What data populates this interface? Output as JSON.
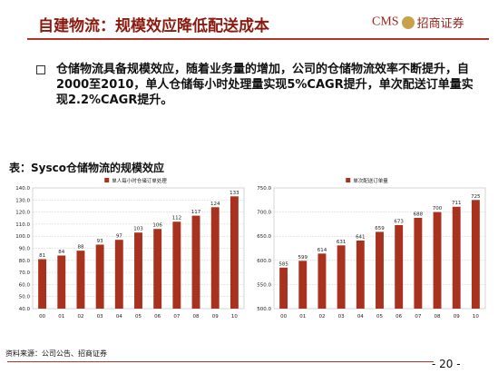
{
  "header": {
    "title": "自建物流：规模效应降低配送成本",
    "logo_cms": "CMS",
    "logo_name": "招商证券"
  },
  "bullet": {
    "text": "仓储物流具备规模效应，随着业务量的增加，公司的仓储物流效率不断提升，自2000至2010，单人仓储每小时处理量实现5%CAGR提升，单次配送订单量实现2.2%CAGR提升。"
  },
  "figure_title": "表：Sysco仓储物流的规模效应",
  "footer": {
    "source": "资料来源：公司公告、招商证券",
    "page": "- 20 -"
  },
  "colors": {
    "accent": "#8b1a10",
    "bar": "#a8321e",
    "rule": "#b3342a"
  },
  "chart_data": [
    {
      "type": "bar",
      "legend": "单人每小时仓储订单处理",
      "categories": [
        "00",
        "01",
        "02",
        "03",
        "04",
        "05",
        "06",
        "07",
        "08",
        "09",
        "10"
      ],
      "values": [
        81,
        84,
        88,
        93,
        97,
        103,
        106,
        112,
        117,
        124,
        133
      ],
      "ylim": [
        40,
        140
      ],
      "yticks": [
        40,
        50,
        60,
        70,
        80,
        90,
        100,
        110,
        120,
        130,
        140
      ],
      "ytick_labels": [
        "40.0",
        "50.0",
        "60.0",
        "70.0",
        "80.0",
        "90.0",
        "100.0",
        "110.0",
        "120.0",
        "130.0",
        "140.0"
      ],
      "grid": true,
      "legend_position": "top"
    },
    {
      "type": "bar",
      "legend": "单次配送订单量",
      "categories": [
        "00",
        "01",
        "02",
        "03",
        "04",
        "05",
        "06",
        "07",
        "08",
        "09",
        "10"
      ],
      "values": [
        585,
        599,
        614,
        631,
        641,
        659,
        673,
        688,
        700,
        711,
        725
      ],
      "ylim": [
        500,
        750
      ],
      "yticks": [
        500,
        550,
        600,
        650,
        700,
        750
      ],
      "ytick_labels": [
        "500.0",
        "550.0",
        "600.0",
        "650.0",
        "700.0",
        "750.0"
      ],
      "grid": true,
      "legend_position": "top"
    }
  ]
}
